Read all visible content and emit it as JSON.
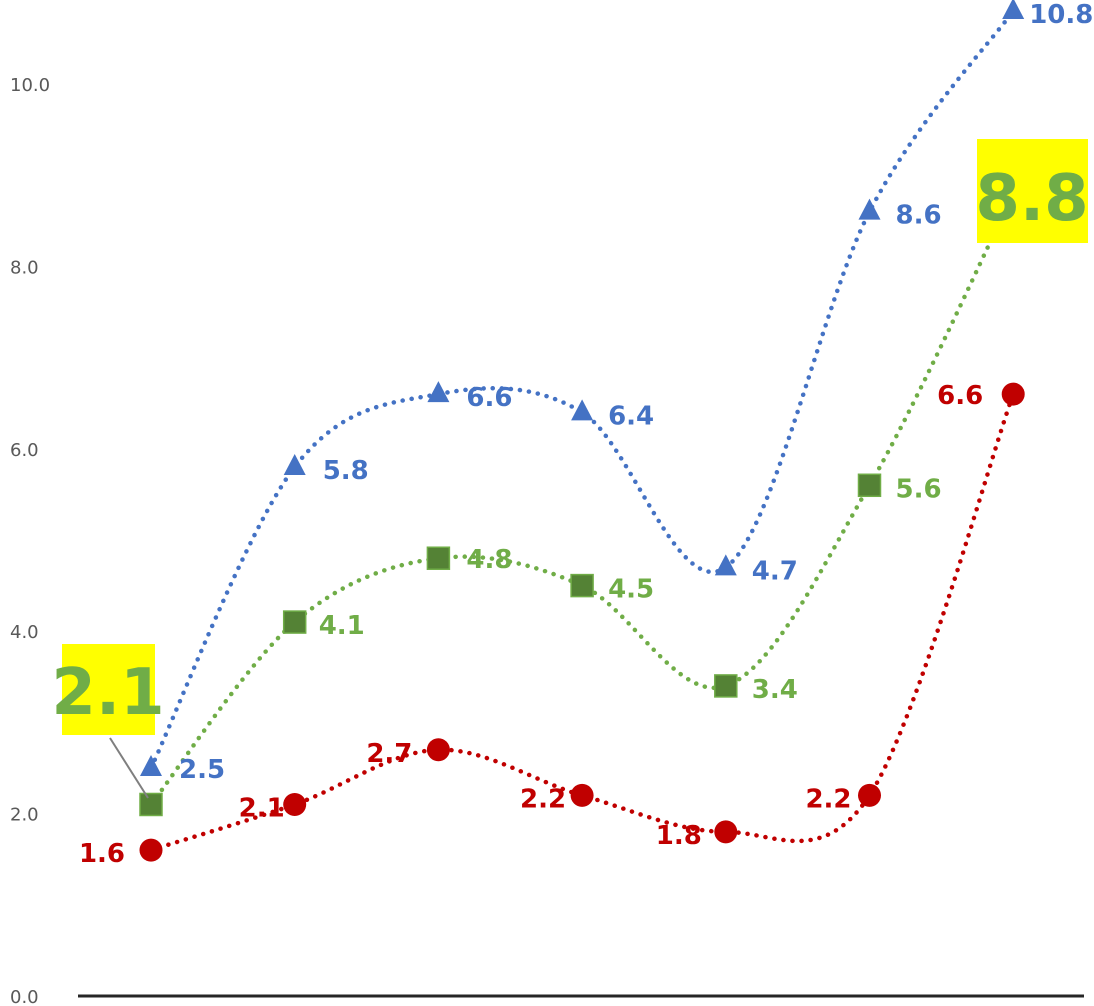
{
  "chart_data": {
    "type": "line",
    "title": "",
    "xlabel": "",
    "ylabel": "",
    "ylim": [
      0,
      11
    ],
    "grid": false,
    "legend": "none",
    "y_ticks": [
      "0.0",
      "2.0",
      "4.0",
      "6.0",
      "8.0",
      "10.0"
    ],
    "x": [
      1,
      2,
      3,
      4,
      5,
      6,
      7
    ],
    "series": [
      {
        "color": "#4472C4",
        "marker": "triangle",
        "line_style": "dotted",
        "values": [
          2.5,
          5.8,
          6.6,
          6.4,
          4.7,
          8.6,
          10.8
        ],
        "labels": [
          "2.5",
          "5.8",
          "6.6",
          "6.4",
          "4.7",
          "8.6",
          "10.8"
        ]
      },
      {
        "color": "#70AD47",
        "marker_color": "#548235",
        "marker": "square",
        "line_style": "dotted",
        "values": [
          2.1,
          4.1,
          4.8,
          4.5,
          3.4,
          5.6,
          8.8
        ],
        "labels": [
          "2.1",
          "4.1",
          "4.8",
          "4.5",
          "3.4",
          "5.6",
          "8.8"
        ]
      },
      {
        "color": "#C00000",
        "marker": "circle",
        "line_style": "dotted",
        "values": [
          1.6,
          2.1,
          2.7,
          2.2,
          1.8,
          2.2,
          6.6
        ],
        "labels": [
          "1.6",
          "2.1",
          "2.7",
          "2.2",
          "1.8",
          "2.2",
          "6.6"
        ]
      }
    ],
    "callouts": [
      {
        "text": "2.1",
        "series": 1,
        "point": 0,
        "background": "#FFFF00",
        "color": "#70AD47"
      },
      {
        "text": "8.8",
        "series": 1,
        "point": 6,
        "background": "#FFFF00",
        "color": "#70AD47"
      }
    ]
  }
}
